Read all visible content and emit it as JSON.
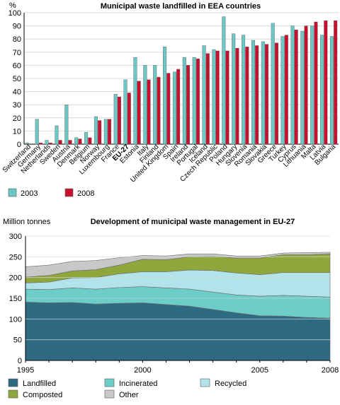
{
  "chart_data": [
    {
      "type": "bar",
      "title": "Municipal waste landfilled in EEA countries",
      "ylabel": "%",
      "ylim": [
        0,
        100
      ],
      "yticks": [
        0,
        10,
        20,
        30,
        40,
        50,
        60,
        70,
        80,
        90,
        100
      ],
      "grid": true,
      "legend_position": "bottom-left",
      "categories": [
        "Switzerland",
        "Germany",
        "Netherlands",
        "Sweden",
        "Austria",
        "Denmark",
        "Belgium",
        "Norway",
        "Luxembourg",
        "France",
        "EU-27",
        "Estonia",
        "Italy",
        "Finland",
        "United Kingdom",
        "Spain",
        "Ireland",
        "Portugal",
        "Iceland",
        "Czech Republic",
        "Poland",
        "Hungary",
        "Slovenia",
        "Romania",
        "Slovakia",
        "Greece",
        "Turkey",
        "Cyprus",
        "Lithuania",
        "Malta",
        "Latvia",
        "Bulgaria"
      ],
      "bold_categories": [
        "EU-27"
      ],
      "series": [
        {
          "name": "2003",
          "color": "#6cc8c4",
          "values": [
            1,
            19,
            3,
            14,
            30,
            5,
            9,
            21,
            19,
            38,
            49,
            66,
            60,
            60,
            74,
            55,
            66,
            66,
            75,
            72,
            97,
            84,
            83,
            79,
            78,
            92,
            82,
            90,
            86,
            90,
            83,
            82
          ]
        },
        {
          "name": "2008",
          "color": "#c8102e",
          "values": [
            0,
            1,
            1,
            3,
            3,
            4,
            5,
            18,
            19,
            36,
            39,
            48,
            49,
            51,
            54,
            57,
            60,
            65,
            69,
            71,
            71,
            73,
            74,
            75,
            76,
            77,
            83,
            87,
            90,
            93,
            94,
            94
          ]
        }
      ]
    },
    {
      "type": "area",
      "stacked": true,
      "title": "Development of municipal waste management in EU-27",
      "ylabel": "Million tonnes",
      "ylim": [
        0,
        300
      ],
      "yticks": [
        0,
        50,
        100,
        150,
        200,
        250,
        300
      ],
      "xlim": [
        1995,
        2008
      ],
      "xticks": [
        1995,
        2000,
        2005,
        2008
      ],
      "legend_position": "bottom",
      "x": [
        1995,
        1996,
        1997,
        1998,
        1999,
        2000,
        2001,
        2002,
        2003,
        2004,
        2005,
        2006,
        2007,
        2008
      ],
      "series": [
        {
          "name": "Landfilled",
          "color": "#2f6a83",
          "values": [
            141,
            139,
            140,
            136,
            138,
            139,
            135,
            131,
            123,
            115,
            108,
            107,
            104,
            102
          ]
        },
        {
          "name": "Incinerated",
          "color": "#6dcdc8",
          "values": [
            31,
            32,
            35,
            36,
            38,
            39,
            40,
            41,
            42,
            43,
            47,
            50,
            51,
            51
          ]
        },
        {
          "name": "Recycled",
          "color": "#b3e3ea",
          "values": [
            15,
            18,
            24,
            28,
            33,
            36,
            39,
            46,
            52,
            53,
            52,
            55,
            57,
            59
          ]
        },
        {
          "name": "Composted",
          "color": "#8fa63d",
          "values": [
            14,
            16,
            17,
            19,
            21,
            30,
            29,
            32,
            34,
            36,
            40,
            43,
            43,
            45
          ]
        },
        {
          "name": "Other",
          "color": "#c8c8c8",
          "values": [
            25,
            25,
            23,
            22,
            18,
            9,
            9,
            7,
            6,
            5,
            5,
            4,
            5,
            4
          ]
        }
      ]
    }
  ]
}
